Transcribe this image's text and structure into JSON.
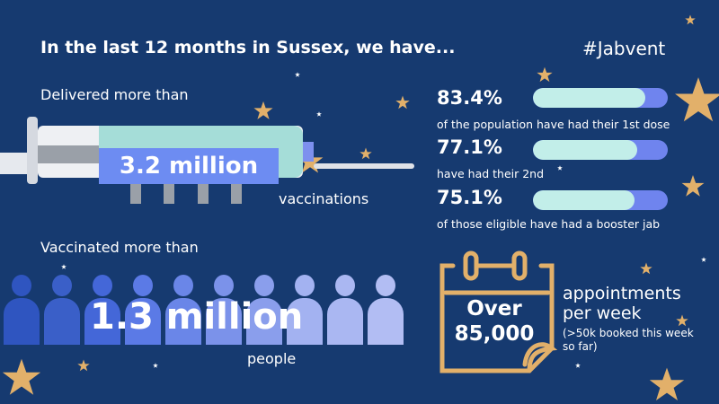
{
  "title": "In the last 12 months in Sussex, we have...",
  "hashtag": "#Jabvent",
  "vaccinations": {
    "intro": "Delivered more than",
    "value": "3.2 million",
    "unit": "vaccinations"
  },
  "people": {
    "intro": "Vaccinated more than",
    "value": "1.3 million",
    "unit": "people",
    "icon_count": 10,
    "icon_colors": [
      "#2f55c0",
      "#3a5fc8",
      "#4467d8",
      "#5b7ae6",
      "#6a86e8",
      "#7b92ea",
      "#8a9eec",
      "#a3b2f1",
      "#aab7f2",
      "#b2bdf3"
    ]
  },
  "stats": [
    {
      "value": "83.4%",
      "percent": 83.4,
      "caption": "of the population have had their 1st dose"
    },
    {
      "value": "77.1%",
      "percent": 77.1,
      "caption": "have had their 2nd"
    },
    {
      "value": "75.1%",
      "percent": 75.1,
      "caption": "of those eligible have had a booster jab"
    }
  ],
  "appointments": {
    "line1": "Over",
    "line2": "85,000",
    "label1": "appointments",
    "label2": "per week",
    "note": "(>50k booked this week so far)"
  },
  "colors": {
    "background": "#163a70",
    "bar_fill": "#c2eee9",
    "bar_track": "#6f84ee",
    "gold": "#e2b06a",
    "accent": "#6d8cf2"
  }
}
